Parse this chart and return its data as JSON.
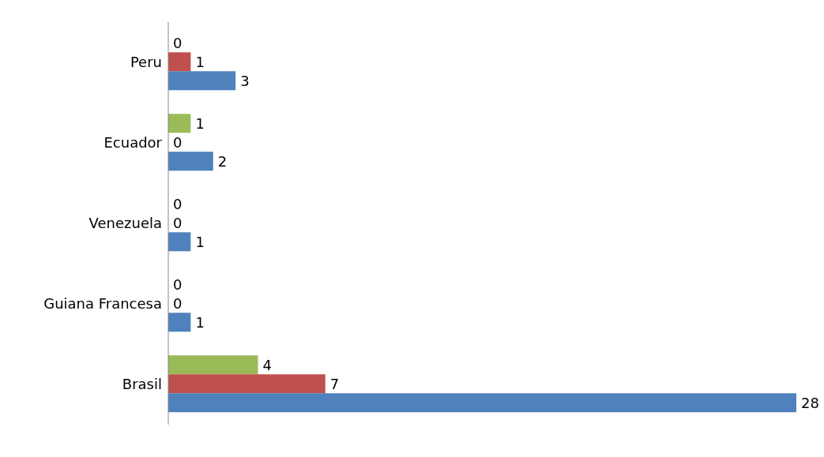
{
  "chart_data": {
    "type": "bar",
    "orientation": "horizontal",
    "categories": [
      "Peru",
      "Ecuador",
      "Venezuela",
      "Guiana Francesa",
      "Brasil"
    ],
    "series": [
      {
        "color": "#9bbb59",
        "values": [
          0,
          1,
          0,
          0,
          4
        ]
      },
      {
        "color": "#c0504d",
        "values": [
          1,
          0,
          0,
          0,
          7
        ]
      },
      {
        "color": "#4f81bd",
        "values": [
          3,
          2,
          1,
          1,
          28
        ]
      }
    ],
    "xlim": [
      0,
      28
    ],
    "data_labels": true,
    "tick_labels": "y",
    "grid": false,
    "legend": false
  }
}
